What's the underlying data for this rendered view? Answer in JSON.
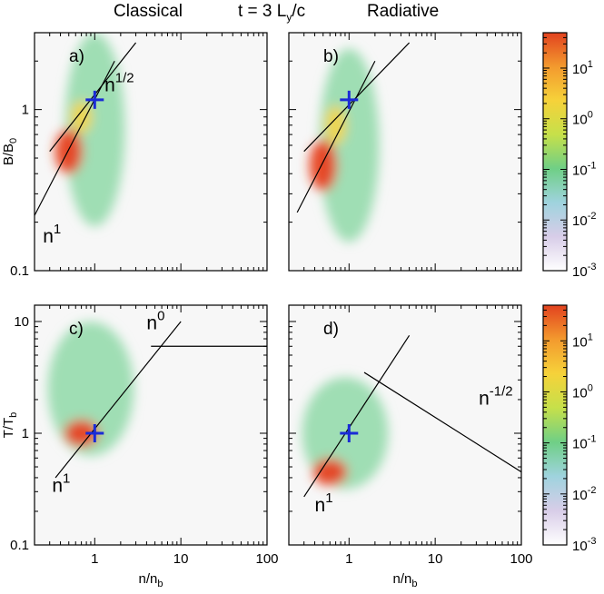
{
  "header": {
    "left": "Classical",
    "center": "t = 3 L",
    "center_sub": "y",
    "center_tail": "/c",
    "right": "Radiative"
  },
  "chart_data": [
    {
      "type": "heatmap",
      "panel_label": "a)",
      "column": "Classical",
      "xscale": "log",
      "yscale": "log",
      "xlim": [
        0.2,
        100
      ],
      "ylim": [
        0.1,
        3
      ],
      "xticks": [
        "1",
        "10",
        "100"
      ],
      "xtick_labels_shown": false,
      "yticks": [
        "0.1",
        "1"
      ],
      "ylabel": "B/B",
      "ylabel_sub": "0",
      "marker": {
        "x": 1,
        "y": 1.15,
        "symbol": "+",
        "color": "#1a2bd6"
      },
      "guide_lines": [
        {
          "label": "n",
          "exponent": "1",
          "from": [
            0.2,
            0.22
          ],
          "to": [
            1.7,
            2.0
          ]
        },
        {
          "label": "n",
          "exponent": "1/2",
          "from": [
            0.3,
            0.55
          ],
          "to": [
            3.0,
            2.6
          ]
        }
      ],
      "density_blobs": [
        {
          "cx": 0.5,
          "cy": 0.55,
          "rx": 0.16,
          "ry": 0.14,
          "level": "high"
        },
        {
          "cx": 0.7,
          "cy": 0.9,
          "rx": 0.12,
          "ry": 0.1,
          "level": "mid"
        },
        {
          "cx": 1.0,
          "cy": 0.75,
          "rx": 0.35,
          "ry": 0.6,
          "level": "low"
        }
      ]
    },
    {
      "type": "heatmap",
      "panel_label": "b)",
      "column": "Radiative",
      "xscale": "log",
      "yscale": "log",
      "xlim": [
        0.2,
        100
      ],
      "ylim": [
        0.1,
        3
      ],
      "xticks": [
        "1",
        "10",
        "100"
      ],
      "xtick_labels_shown": false,
      "yticks": [
        "0.1",
        "1"
      ],
      "ytick_labels_shown": false,
      "marker": {
        "x": 1,
        "y": 1.15,
        "symbol": "+",
        "color": "#1a2bd6"
      },
      "guide_lines": [
        {
          "from": [
            0.25,
            0.23
          ],
          "to": [
            2.0,
            2.0
          ]
        },
        {
          "from": [
            0.3,
            0.55
          ],
          "to": [
            5.0,
            2.6
          ]
        }
      ],
      "density_blobs": [
        {
          "cx": 0.5,
          "cy": 0.45,
          "rx": 0.16,
          "ry": 0.16,
          "level": "high"
        },
        {
          "cx": 0.7,
          "cy": 0.8,
          "rx": 0.12,
          "ry": 0.12,
          "level": "mid"
        },
        {
          "cx": 1.0,
          "cy": 0.6,
          "rx": 0.35,
          "ry": 0.6,
          "level": "low"
        }
      ]
    },
    {
      "type": "heatmap",
      "panel_label": "c)",
      "column": "Classical",
      "xscale": "log",
      "yscale": "log",
      "xlim": [
        0.2,
        100
      ],
      "ylim": [
        0.1,
        14
      ],
      "xticks": [
        "1",
        "10",
        "100"
      ],
      "xlabel": "n/n",
      "xlabel_sub": "b",
      "yticks": [
        "0.1",
        "1",
        "10"
      ],
      "ylabel": "T/T",
      "ylabel_sub": "b",
      "marker": {
        "x": 1,
        "y": 1.0,
        "symbol": "+",
        "color": "#1a2bd6"
      },
      "guide_lines": [
        {
          "label": "n",
          "exponent": "1",
          "from": [
            0.35,
            0.4
          ],
          "to": [
            10,
            10
          ]
        },
        {
          "label": "n",
          "exponent": "0",
          "from": [
            4.5,
            6
          ],
          "to": [
            100,
            6
          ]
        }
      ],
      "density_blobs": [
        {
          "cx": 0.7,
          "cy": 1.0,
          "rx": 0.2,
          "ry": 0.12,
          "level": "high"
        },
        {
          "cx": 0.9,
          "cy": 2.5,
          "rx": 0.5,
          "ry": 0.6,
          "level": "low"
        }
      ]
    },
    {
      "type": "heatmap",
      "panel_label": "d)",
      "column": "Radiative",
      "xscale": "log",
      "yscale": "log",
      "xlim": [
        0.2,
        100
      ],
      "ylim": [
        0.1,
        14
      ],
      "xticks": [
        "1",
        "10",
        "100"
      ],
      "xlabel": "n/n",
      "xlabel_sub": "b",
      "yticks": [
        "0.1",
        "1",
        "10"
      ],
      "ytick_labels_shown": false,
      "marker": {
        "x": 1,
        "y": 1.0,
        "symbol": "+",
        "color": "#1a2bd6"
      },
      "guide_lines": [
        {
          "label": "n",
          "exponent": "1",
          "from": [
            0.3,
            0.27
          ],
          "to": [
            5.0,
            7.5
          ]
        },
        {
          "label": "n",
          "exponent": "-1/2",
          "from": [
            1.5,
            3.5
          ],
          "to": [
            100,
            0.45
          ]
        }
      ],
      "density_blobs": [
        {
          "cx": 0.6,
          "cy": 0.45,
          "rx": 0.2,
          "ry": 0.12,
          "level": "high"
        },
        {
          "cx": 0.9,
          "cy": 1.0,
          "rx": 0.5,
          "ry": 0.5,
          "level": "low"
        }
      ]
    }
  ],
  "colorbar": {
    "scale": "log",
    "range": [
      0.001,
      50
    ],
    "ticks": [
      {
        "base": "10",
        "exp": "-3",
        "value": 0.001
      },
      {
        "base": "10",
        "exp": "-2",
        "value": 0.01
      },
      {
        "base": "10",
        "exp": "-1",
        "value": 0.1
      },
      {
        "base": "10",
        "exp": "0",
        "value": 1
      },
      {
        "base": "10",
        "exp": "1",
        "value": 10
      }
    ],
    "colors": [
      "#ffffff",
      "#d8cde8",
      "#9fd3de",
      "#6fcf86",
      "#c6e04a",
      "#f6d23a",
      "#f39a2e",
      "#e2421f"
    ]
  },
  "colors": {
    "marker": "#1a2bd6",
    "guide_line": "#000000",
    "density_low": "#8fd9a8",
    "density_mid": "#f2d44a",
    "density_high": "#e8401f"
  }
}
